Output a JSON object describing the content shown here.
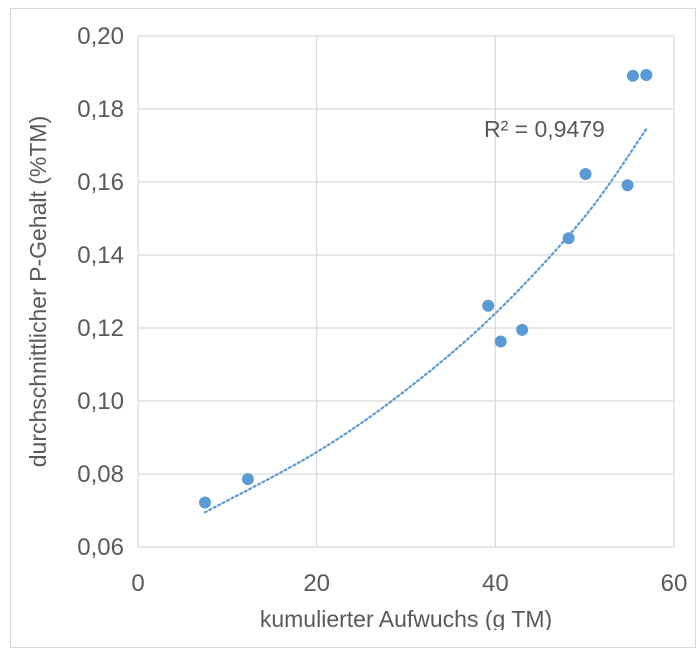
{
  "chart_data": {
    "type": "scatter",
    "title": "",
    "xlabel": "kumulierter Aufwuchs (g TM)",
    "ylabel": "durchschnittlicher P-Gehalt (%TM)",
    "xlim": [
      0,
      60
    ],
    "ylim": [
      0.06,
      0.2
    ],
    "x_ticks": [
      "0",
      "20",
      "40",
      "60"
    ],
    "y_ticks": [
      "0,06",
      "0,08",
      "0,10",
      "0,12",
      "0,14",
      "0,16",
      "0,18",
      "0,20"
    ],
    "grid": true,
    "legend": "none",
    "series": [
      {
        "color": "#5b9bd5",
        "points": [
          {
            "x": 7.5,
            "y": 0.0722
          },
          {
            "x": 12.3,
            "y": 0.0786
          },
          {
            "x": 39.2,
            "y": 0.1261
          },
          {
            "x": 40.6,
            "y": 0.1163
          },
          {
            "x": 43.0,
            "y": 0.1195
          },
          {
            "x": 48.2,
            "y": 0.1446
          },
          {
            "x": 50.1,
            "y": 0.1622
          },
          {
            "x": 54.8,
            "y": 0.1591
          },
          {
            "x": 55.4,
            "y": 0.1891
          },
          {
            "x": 56.9,
            "y": 0.1893
          }
        ]
      }
    ],
    "trendline": {
      "style": "dotted",
      "color": "#5b9bd5",
      "x_range": [
        7.5,
        56.9
      ],
      "points": [
        {
          "x": 7.5,
          "y": 0.0695
        },
        {
          "x": 20,
          "y": 0.086
        },
        {
          "x": 30,
          "y": 0.103
        },
        {
          "x": 40,
          "y": 0.124
        },
        {
          "x": 50,
          "y": 0.1505
        },
        {
          "x": 56.9,
          "y": 0.1745
        }
      ],
      "label": "R² = 0,9479"
    }
  }
}
